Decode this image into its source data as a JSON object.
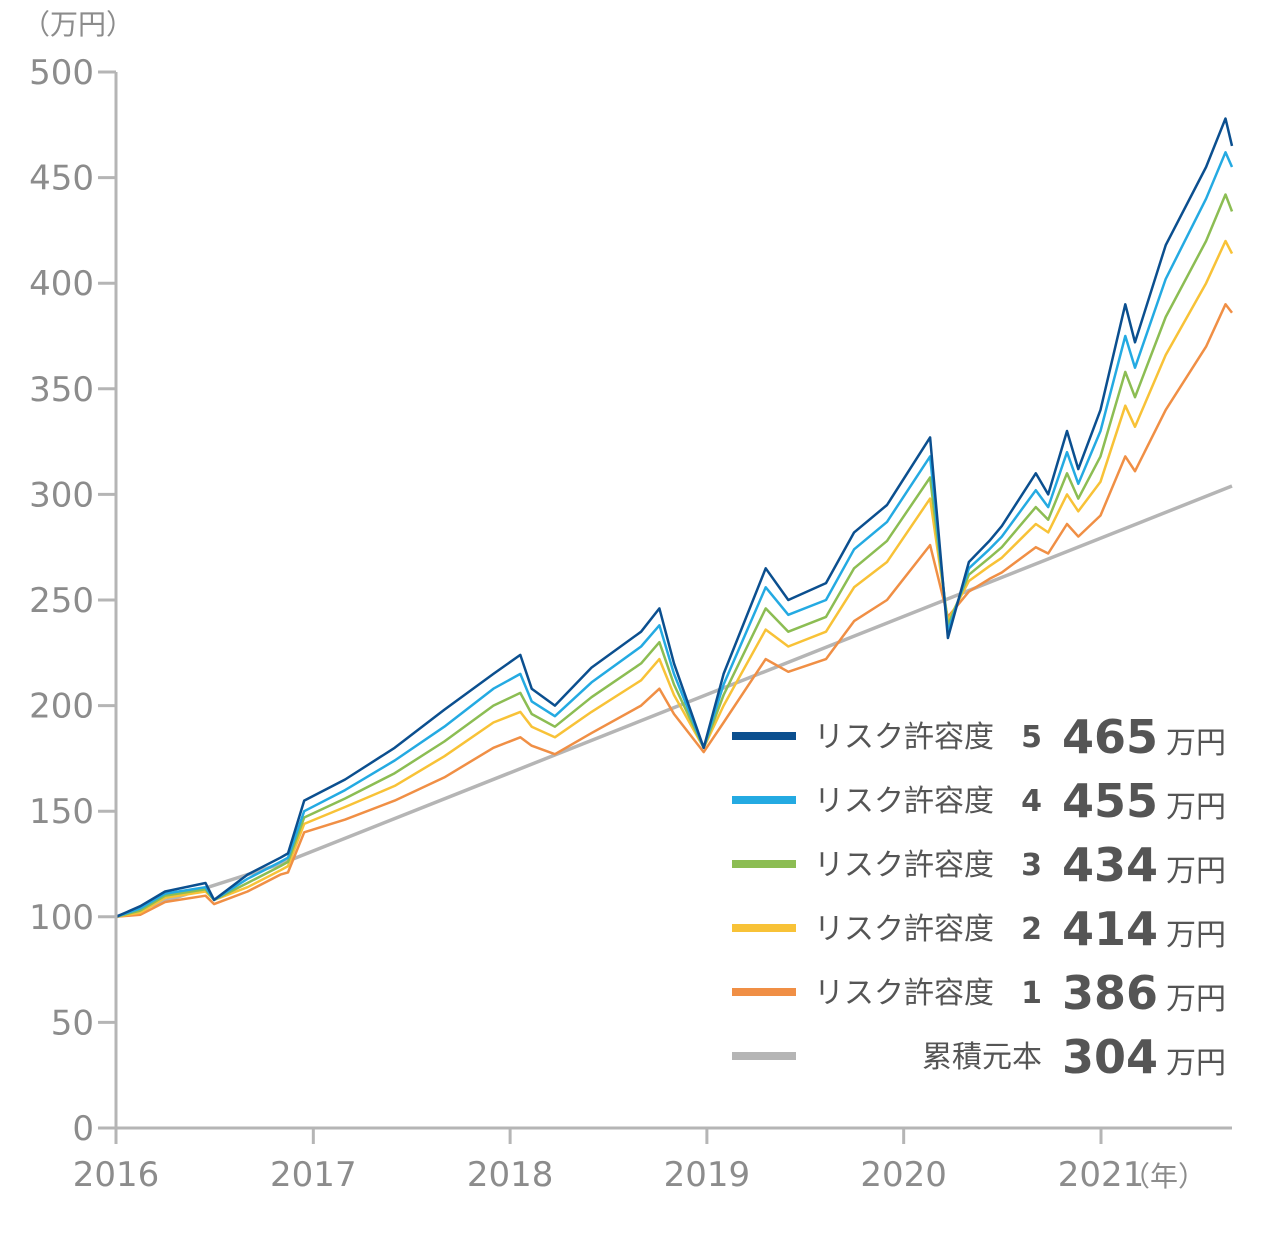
{
  "chart_data": {
    "type": "line",
    "y_unit": "（万円）",
    "x_unit": "（年）",
    "ylim": [
      0,
      500
    ],
    "y_ticks": [
      0,
      50,
      100,
      150,
      200,
      250,
      300,
      350,
      400,
      450,
      500
    ],
    "x_ticks": [
      "2016",
      "2017",
      "2018",
      "2019",
      "2020",
      "2021"
    ],
    "x_range": [
      "2016-01-01",
      "2021-09-01"
    ],
    "grid": false,
    "legend_position": "bottom-right",
    "value_unit": "万円",
    "series": [
      {
        "name": "リスク許容度",
        "level": "5",
        "final_value": "465",
        "color": "#0b4f8f",
        "x": [
          "2016-01-01",
          "2016-02-15",
          "2016-04-01",
          "2016-06-15",
          "2016-07-01",
          "2016-09-01",
          "2016-11-01",
          "2016-11-15",
          "2016-12-15",
          "2017-03-01",
          "2017-06-01",
          "2017-09-01",
          "2017-12-01",
          "2018-01-20",
          "2018-02-10",
          "2018-03-25",
          "2018-06-01",
          "2018-09-01",
          "2018-10-05",
          "2018-11-01",
          "2018-12-26",
          "2019-02-01",
          "2019-04-20",
          "2019-06-01",
          "2019-08-10",
          "2019-10-01",
          "2019-12-01",
          "2020-02-19",
          "2020-03-23",
          "2020-05-01",
          "2020-06-08",
          "2020-07-01",
          "2020-09-02",
          "2020-09-25",
          "2020-10-30",
          "2020-11-20",
          "2020-12-31",
          "2021-02-15",
          "2021-03-05",
          "2021-05-01",
          "2021-07-15",
          "2021-08-20",
          "2021-09-01"
        ],
        "y": [
          100,
          105,
          112,
          116,
          108,
          120,
          128,
          130,
          155,
          165,
          180,
          198,
          215,
          224,
          208,
          200,
          218,
          235,
          246,
          220,
          180,
          215,
          265,
          250,
          258,
          282,
          295,
          327,
          232,
          268,
          278,
          285,
          310,
          300,
          330,
          312,
          340,
          390,
          372,
          418,
          455,
          478,
          465
        ]
      },
      {
        "name": "リスク許容度",
        "level": "4",
        "final_value": "455",
        "color": "#24aae2",
        "x": [
          "2016-01-01",
          "2016-02-15",
          "2016-04-01",
          "2016-06-15",
          "2016-07-01",
          "2016-09-01",
          "2016-11-01",
          "2016-11-15",
          "2016-12-15",
          "2017-03-01",
          "2017-06-01",
          "2017-09-01",
          "2017-12-01",
          "2018-01-20",
          "2018-02-10",
          "2018-03-25",
          "2018-06-01",
          "2018-09-01",
          "2018-10-05",
          "2018-11-01",
          "2018-12-26",
          "2019-02-01",
          "2019-04-20",
          "2019-06-01",
          "2019-08-10",
          "2019-10-01",
          "2019-12-01",
          "2020-02-19",
          "2020-03-23",
          "2020-05-01",
          "2020-06-08",
          "2020-07-01",
          "2020-09-02",
          "2020-09-25",
          "2020-10-30",
          "2020-11-20",
          "2020-12-31",
          "2021-02-15",
          "2021-03-05",
          "2021-05-01",
          "2021-07-15",
          "2021-08-20",
          "2021-09-01"
        ],
        "y": [
          100,
          104,
          111,
          114,
          108,
          118,
          126,
          128,
          150,
          160,
          174,
          190,
          208,
          215,
          202,
          195,
          211,
          228,
          238,
          215,
          180,
          210,
          256,
          243,
          250,
          274,
          287,
          318,
          235,
          265,
          274,
          280,
          302,
          294,
          320,
          305,
          330,
          375,
          360,
          402,
          440,
          462,
          455
        ]
      },
      {
        "name": "リスク許容度",
        "level": "3",
        "final_value": "434",
        "color": "#8cbd53",
        "x": [
          "2016-01-01",
          "2016-02-15",
          "2016-04-01",
          "2016-06-15",
          "2016-07-01",
          "2016-09-01",
          "2016-11-01",
          "2016-11-15",
          "2016-12-15",
          "2017-03-01",
          "2017-06-01",
          "2017-09-01",
          "2017-12-01",
          "2018-01-20",
          "2018-02-10",
          "2018-03-25",
          "2018-06-01",
          "2018-09-01",
          "2018-10-05",
          "2018-11-01",
          "2018-12-26",
          "2019-02-01",
          "2019-04-20",
          "2019-06-01",
          "2019-08-10",
          "2019-10-01",
          "2019-12-01",
          "2020-02-19",
          "2020-03-23",
          "2020-05-01",
          "2020-06-08",
          "2020-07-01",
          "2020-09-02",
          "2020-09-25",
          "2020-10-30",
          "2020-11-20",
          "2020-12-31",
          "2021-02-15",
          "2021-03-05",
          "2021-05-01",
          "2021-07-15",
          "2021-08-20",
          "2021-09-01"
        ],
        "y": [
          100,
          103,
          110,
          113,
          108,
          116,
          124,
          126,
          147,
          156,
          168,
          183,
          200,
          206,
          196,
          190,
          204,
          220,
          230,
          210,
          180,
          205,
          246,
          235,
          242,
          265,
          278,
          308,
          238,
          262,
          270,
          275,
          294,
          288,
          310,
          298,
          318,
          358,
          346,
          384,
          420,
          442,
          434
        ]
      },
      {
        "name": "リスク許容度",
        "level": "2",
        "final_value": "414",
        "color": "#f8c237",
        "x": [
          "2016-01-01",
          "2016-02-15",
          "2016-04-01",
          "2016-06-15",
          "2016-07-01",
          "2016-09-01",
          "2016-11-01",
          "2016-11-15",
          "2016-12-15",
          "2017-03-01",
          "2017-06-01",
          "2017-09-01",
          "2017-12-01",
          "2018-01-20",
          "2018-02-10",
          "2018-03-25",
          "2018-06-01",
          "2018-09-01",
          "2018-10-05",
          "2018-11-01",
          "2018-12-26",
          "2019-02-01",
          "2019-04-20",
          "2019-06-01",
          "2019-08-10",
          "2019-10-01",
          "2019-12-01",
          "2020-02-19",
          "2020-03-23",
          "2020-05-01",
          "2020-06-08",
          "2020-07-01",
          "2020-09-02",
          "2020-09-25",
          "2020-10-30",
          "2020-11-20",
          "2020-12-31",
          "2021-02-15",
          "2021-03-05",
          "2021-05-01",
          "2021-07-15",
          "2021-08-20",
          "2021-09-01"
        ],
        "y": [
          100,
          102,
          109,
          112,
          108,
          114,
          122,
          124,
          144,
          152,
          162,
          176,
          192,
          197,
          190,
          185,
          197,
          212,
          222,
          205,
          180,
          200,
          236,
          228,
          235,
          256,
          268,
          298,
          240,
          259,
          266,
          270,
          286,
          282,
          300,
          292,
          306,
          342,
          332,
          366,
          400,
          420,
          414
        ]
      },
      {
        "name": "リスク許容度",
        "level": "1",
        "final_value": "386",
        "color": "#f08f45",
        "x": [
          "2016-01-01",
          "2016-02-15",
          "2016-04-01",
          "2016-06-15",
          "2016-07-01",
          "2016-09-01",
          "2016-11-01",
          "2016-11-15",
          "2016-12-15",
          "2017-03-01",
          "2017-06-01",
          "2017-09-01",
          "2017-12-01",
          "2018-01-20",
          "2018-02-10",
          "2018-03-25",
          "2018-06-01",
          "2018-09-01",
          "2018-10-05",
          "2018-11-01",
          "2018-12-26",
          "2019-02-01",
          "2019-04-20",
          "2019-06-01",
          "2019-08-10",
          "2019-10-01",
          "2019-12-01",
          "2020-02-19",
          "2020-03-23",
          "2020-05-01",
          "2020-06-08",
          "2020-07-01",
          "2020-09-02",
          "2020-09-25",
          "2020-10-30",
          "2020-11-20",
          "2020-12-31",
          "2021-02-15",
          "2021-03-05",
          "2021-05-01",
          "2021-07-15",
          "2021-08-20",
          "2021-09-01"
        ],
        "y": [
          100,
          101,
          107,
          110,
          106,
          112,
          120,
          121,
          140,
          146,
          155,
          166,
          180,
          185,
          181,
          177,
          187,
          200,
          208,
          196,
          178,
          192,
          222,
          216,
          222,
          240,
          250,
          276,
          242,
          254,
          260,
          263,
          275,
          272,
          286,
          280,
          290,
          318,
          311,
          340,
          370,
          390,
          386
        ]
      },
      {
        "name": "累積元本",
        "final_value": "304",
        "color": "#b5b5b5",
        "x": [
          "2016-01-01",
          "2016-11-01",
          "2021-09-01"
        ],
        "y": [
          100,
          125,
          304
        ]
      }
    ]
  }
}
